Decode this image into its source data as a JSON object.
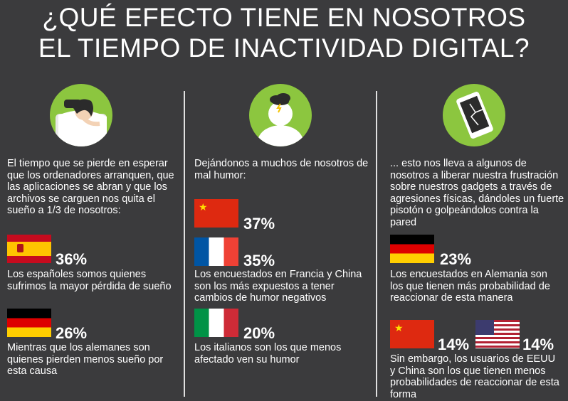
{
  "title": {
    "line1": "¿QUÉ EFECTO TIENE EN NOSOTROS",
    "line2": "EL TIEMPO DE INACTIVIDAD DIGITAL?"
  },
  "colors": {
    "background": "#3b3b3d",
    "icon_circle": "#8cc63f",
    "text": "#ffffff"
  },
  "columns": [
    {
      "icon": "sleepless-person-icon",
      "intro": "El tiempo que se pierde en esperar que los ordenadores arranquen, que las aplicaciones se abran y que los archivos se carguen nos quita el sueño a 1/3 de nosotros:",
      "stats": [
        {
          "flag": "spain-flag-icon",
          "percent": "36%",
          "text": "Los españoles somos quienes sufrimos la mayor pérdida de sueño"
        },
        {
          "flag": "germany-flag-icon",
          "percent": "26%",
          "text": "Mientras que los alemanes son quienes pierden menos sueño por esta causa"
        }
      ]
    },
    {
      "icon": "bad-mood-cloud-icon",
      "intro": "Dejándonos a muchos de nosotros de mal humor:",
      "stats": [
        {
          "flag": "china-flag-icon",
          "percent": "37%",
          "text": ""
        },
        {
          "flag": "france-flag-icon",
          "percent": "35%",
          "text": "Los encuestados en Francia y China son los más expuestos a tener cambios de humor negativos"
        },
        {
          "flag": "italy-flag-icon",
          "percent": "20%",
          "text": "Los italianos son los que menos afectado ven su humor"
        }
      ]
    },
    {
      "icon": "broken-phone-icon",
      "intro": "... esto nos lleva a algunos de nosotros a liberar nuestra frustración sobre nuestros gadgets a través de agresiones físicas, dándoles un fuerte pisotón o golpeándolos contra la pared",
      "stats": [
        {
          "flag": "germany-flag-icon",
          "percent": "23%",
          "text": "Los encuestados en Alemania son los que tienen más probabilidad de reaccionar de esta manera"
        },
        {
          "flag": "china-flag-icon",
          "percent": "14%",
          "text": ""
        },
        {
          "flag": "usa-flag-icon",
          "percent": "14%",
          "text": "Sin embargo, los usuarios de EEUU y China son los que tienen menos probabilidades de reaccionar de esta forma"
        }
      ]
    }
  ]
}
